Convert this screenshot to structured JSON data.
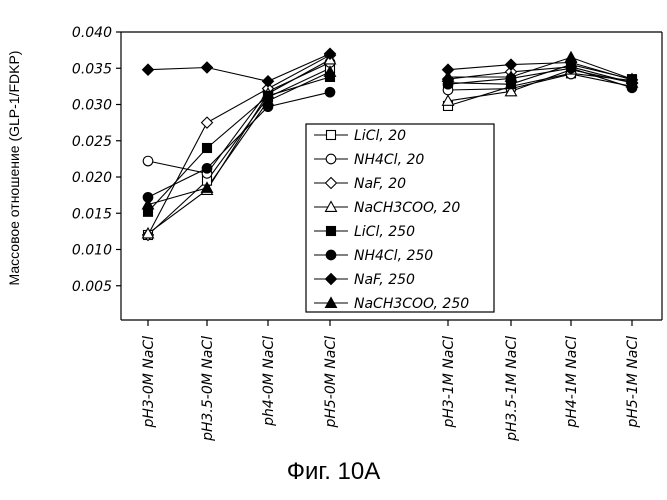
{
  "caption": "Фиг. 10A",
  "chart_data": {
    "type": "line",
    "ylabel": "Массовое отношение (GLP-1/FDKP)",
    "xlabel": "",
    "ylim": [
      0,
      0.04
    ],
    "yticks": [
      "0.005",
      "0.010",
      "0.015",
      "0.020",
      "0.025",
      "0.030",
      "0.035",
      "0.040"
    ],
    "grid": false,
    "legend_position": "center-right",
    "categories": [
      "pH3-0M NaCl",
      "pH3.5-0M NaCl",
      "ph4-0M NaCl",
      "pH5-0M NaCl",
      "pH3-1M NaCl",
      "pH3.5-1M NaCl",
      "pH4-1M NaCl",
      "pH5-1M NaCl"
    ],
    "groups": [
      [
        0,
        1,
        2,
        3
      ],
      [
        4,
        5,
        6,
        7
      ]
    ],
    "series": [
      {
        "name": "LiCl, 20",
        "marker": "square-open",
        "values": [
          0.012,
          0.0195,
          0.031,
          0.035,
          0.0298,
          0.0325,
          0.0343,
          0.0333
        ]
      },
      {
        "name": "NH4Cl, 20",
        "marker": "circle-open",
        "values": [
          0.0222,
          0.0205,
          0.0318,
          0.0358,
          0.032,
          0.0322,
          0.0342,
          0.0325
        ]
      },
      {
        "name": "NaF, 20",
        "marker": "diamond-open",
        "values": [
          0.012,
          0.0275,
          0.0322,
          0.0368,
          0.0335,
          0.0345,
          0.0352,
          0.033
        ]
      },
      {
        "name": "NaCH3COO, 20",
        "marker": "triangle-open",
        "values": [
          0.0122,
          0.0182,
          0.0315,
          0.0362,
          0.0305,
          0.0318,
          0.0348,
          0.033
        ]
      },
      {
        "name": "LiCl, 250",
        "marker": "square-filled",
        "values": [
          0.0152,
          0.024,
          0.0312,
          0.0338,
          0.033,
          0.0328,
          0.0355,
          0.0335
        ]
      },
      {
        "name": "NH4Cl, 250",
        "marker": "circle-filled",
        "values": [
          0.0172,
          0.0212,
          0.0297,
          0.0317,
          0.0328,
          0.0336,
          0.035,
          0.0323
        ]
      },
      {
        "name": "NaF, 250",
        "marker": "diamond-filled",
        "values": [
          0.0348,
          0.0351,
          0.0332,
          0.037,
          0.0348,
          0.0355,
          0.0358,
          0.0334
        ]
      },
      {
        "name": "NaCH3COO, 250",
        "marker": "triangle-filled",
        "values": [
          0.0162,
          0.0185,
          0.0305,
          0.0345,
          0.0338,
          0.0338,
          0.0365,
          0.0335
        ]
      }
    ]
  }
}
